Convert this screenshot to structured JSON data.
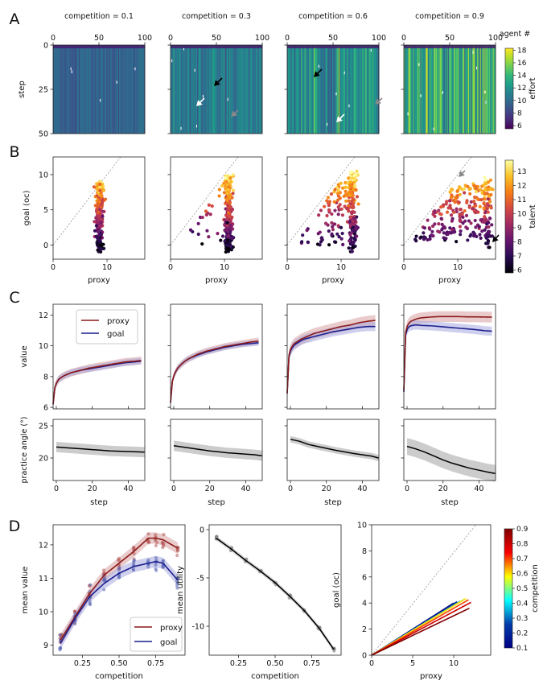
{
  "panel_letters": [
    "A",
    "B",
    "C",
    "D"
  ],
  "colors": {
    "proxy": "#8b1a1a",
    "goal": "#1c1f8e",
    "band_proxy": "#d9a0a0",
    "band_goal": "#a7a9de",
    "angle_line": "#000000",
    "angle_band": "#cccccc",
    "utility": "#000000",
    "diag": "#888888"
  },
  "row_a": {
    "titles": [
      "competition = 0.1",
      "competition = 0.3",
      "competition = 0.6",
      "competition = 0.9"
    ],
    "x_ticks": [
      "0",
      "50",
      "100"
    ],
    "y_ticks": [
      "0",
      "25",
      "50"
    ],
    "ylabel": "step",
    "xlabel_right": "agent #",
    "colorbar_label": "effort",
    "colorbar_ticks": [
      "6",
      "8",
      "10",
      "12",
      "14",
      "16",
      "18"
    ]
  },
  "row_b": {
    "x_ticks": [
      "0",
      "10"
    ],
    "y_ticks": [
      "0",
      "5",
      "10"
    ],
    "xlabel": "proxy",
    "ylabel": "goal (oc)",
    "colorbar_label": "talent",
    "colorbar_ticks": [
      "6",
      "7",
      "8",
      "9",
      "10",
      "11",
      "12",
      "13"
    ]
  },
  "row_c": {
    "value_ticks": [
      "6",
      "8",
      "10",
      "12"
    ],
    "angle_ticks": [
      "20",
      "25"
    ],
    "x_ticks": [
      "0",
      "20",
      "40"
    ],
    "ylabel_value": "value",
    "ylabel_angle": "practice angle (°)",
    "xlabel": "step",
    "legend": [
      "proxy",
      "goal"
    ]
  },
  "row_d": {
    "x_ticks": [
      "0.25",
      "0.50",
      "0.75"
    ],
    "mv_ticks": [
      "9",
      "10",
      "11",
      "12"
    ],
    "mu_ticks": [
      "-10",
      "-5",
      "0"
    ],
    "p3_x_ticks": [
      "0",
      "5",
      "10"
    ],
    "p3_y_ticks": [
      "0",
      "2",
      "4",
      "6",
      "8",
      "10"
    ],
    "xlabel": "competition",
    "ylabel_mean_value": "mean value",
    "ylabel_mean_utility": "mean utility",
    "p3_xlabel": "proxy",
    "p3_ylabel": "goal (oc)",
    "legend": [
      "proxy",
      "goal"
    ],
    "colorbar_label": "competition",
    "colorbar_ticks": [
      "0.1",
      "0.2",
      "0.3",
      "0.4",
      "0.5",
      "0.6",
      "0.7",
      "0.8",
      "0.9"
    ]
  },
  "chart_data": [
    {
      "type": "heatmap",
      "title": "competition = 0.1 / 0.3 / 0.6 / 0.9",
      "xlabel": "agent #",
      "ylabel": "step",
      "xlim": [
        0,
        100
      ],
      "ylim": [
        0,
        50
      ],
      "colorbar": "effort",
      "crange": [
        5.5,
        18.3
      ],
      "mean_effort": [
        9.6,
        10.8,
        11.8,
        13.6
      ]
    },
    {
      "type": "scatter",
      "xlabel": "proxy",
      "ylabel": "goal (oc)",
      "xlim": [
        0,
        17
      ],
      "ylim": [
        -2,
        12.5
      ],
      "clusters": [
        {
          "competition": 0.1,
          "proxy_center": 8.6,
          "goal_range": [
            -1.0,
            9.0
          ],
          "offdiag_pct": 0
        },
        {
          "competition": 0.3,
          "proxy_center": 10.8,
          "goal_range": [
            -1.0,
            10.0
          ],
          "offdiag_pct": 12
        },
        {
          "competition": 0.6,
          "proxy_center": 12.2,
          "goal_range": [
            -1.0,
            10.5
          ],
          "offdiag_pct": 45
        },
        {
          "competition": 0.9,
          "proxy_center": 15.5,
          "goal_range": [
            -0.5,
            9.8
          ],
          "offdiag_pct": 75
        }
      ]
    },
    {
      "type": "line",
      "xlabel": "step",
      "ylabel": "value",
      "x": [
        0,
        1,
        2,
        3,
        4,
        6,
        8,
        10,
        15,
        20,
        25,
        30,
        35,
        40,
        45,
        49
      ],
      "ylim": [
        5.9,
        12.7
      ],
      "series": [
        {
          "name": "proxy",
          "panels": [
            [
              6.2,
              7.3,
              7.6,
              7.8,
              7.9,
              8.05,
              8.15,
              8.25,
              8.4,
              8.55,
              8.65,
              8.75,
              8.85,
              8.95,
              9.0,
              9.05
            ],
            [
              6.3,
              7.7,
              8.1,
              8.35,
              8.55,
              8.8,
              9.0,
              9.15,
              9.45,
              9.65,
              9.8,
              9.95,
              10.05,
              10.15,
              10.25,
              10.3
            ],
            [
              6.9,
              9.4,
              9.8,
              10.0,
              10.15,
              10.3,
              10.45,
              10.55,
              10.8,
              10.95,
              11.1,
              11.25,
              11.35,
              11.5,
              11.6,
              11.65
            ],
            [
              7.1,
              10.9,
              11.3,
              11.5,
              11.6,
              11.7,
              11.78,
              11.82,
              11.87,
              11.9,
              11.9,
              11.9,
              11.88,
              11.88,
              11.87,
              11.86
            ]
          ]
        },
        {
          "name": "goal",
          "panels": [
            [
              6.2,
              7.3,
              7.6,
              7.8,
              7.9,
              8.05,
              8.15,
              8.25,
              8.4,
              8.5,
              8.6,
              8.7,
              8.8,
              8.9,
              8.95,
              9.0
            ],
            [
              6.3,
              7.7,
              8.1,
              8.35,
              8.55,
              8.8,
              9.0,
              9.15,
              9.4,
              9.6,
              9.75,
              9.9,
              10.0,
              10.1,
              10.15,
              10.2
            ],
            [
              6.9,
              9.3,
              9.7,
              9.9,
              10.05,
              10.2,
              10.35,
              10.45,
              10.6,
              10.75,
              10.9,
              11.0,
              11.1,
              11.2,
              11.25,
              11.25
            ],
            [
              7.0,
              10.7,
              11.1,
              11.25,
              11.3,
              11.35,
              11.35,
              11.32,
              11.3,
              11.25,
              11.2,
              11.15,
              11.1,
              11.05,
              10.98,
              10.95
            ]
          ]
        }
      ]
    },
    {
      "type": "line",
      "xlabel": "step",
      "ylabel": "practice angle (°)",
      "x": [
        0,
        5,
        10,
        15,
        20,
        25,
        30,
        35,
        40,
        45,
        49
      ],
      "ylim": [
        16.5,
        26
      ],
      "series": [
        {
          "name": "angle",
          "panels": [
            [
              21.7,
              21.6,
              21.5,
              21.4,
              21.3,
              21.2,
              21.1,
              21.05,
              21.0,
              20.95,
              20.9
            ],
            [
              21.9,
              21.7,
              21.5,
              21.3,
              21.1,
              20.95,
              20.8,
              20.7,
              20.6,
              20.5,
              20.35
            ],
            [
              22.9,
              22.6,
              22.1,
              21.8,
              21.5,
              21.2,
              20.95,
              20.7,
              20.5,
              20.3,
              20.0
            ],
            [
              21.8,
              21.4,
              20.9,
              20.3,
              19.7,
              19.2,
              18.8,
              18.4,
              18.1,
              17.8,
              17.6
            ]
          ]
        }
      ],
      "band_halfwidth": [
        0.8,
        0.8,
        0.5,
        1.3
      ]
    },
    {
      "type": "line",
      "xlabel": "competition",
      "ylabel": "mean value",
      "x": [
        0.1,
        0.2,
        0.3,
        0.4,
        0.5,
        0.6,
        0.7,
        0.75,
        0.8,
        0.9
      ],
      "xlim": [
        0.05,
        0.95
      ],
      "ylim": [
        8.7,
        12.6
      ],
      "series": [
        {
          "name": "proxy",
          "values": [
            9.15,
            9.85,
            10.55,
            11.1,
            11.45,
            11.8,
            12.2,
            12.2,
            12.15,
            11.9
          ]
        },
        {
          "name": "goal",
          "values": [
            9.05,
            9.8,
            10.45,
            10.85,
            11.15,
            11.35,
            11.45,
            11.5,
            11.45,
            10.95
          ]
        }
      ]
    },
    {
      "type": "line",
      "xlabel": "competition",
      "ylabel": "mean utility",
      "x": [
        0.1,
        0.2,
        0.3,
        0.4,
        0.5,
        0.6,
        0.7,
        0.8,
        0.9
      ],
      "xlim": [
        0.05,
        0.95
      ],
      "ylim": [
        -13,
        0.5
      ],
      "series": [
        {
          "name": "utility",
          "values": [
            -0.9,
            -2.0,
            -3.2,
            -4.3,
            -5.5,
            -6.9,
            -8.4,
            -10.2,
            -12.4
          ]
        }
      ]
    },
    {
      "type": "line",
      "xlabel": "proxy",
      "ylabel": "goal (oc)",
      "xlim": [
        0,
        14.5
      ],
      "ylim": [
        0,
        10
      ],
      "colorbar": "competition",
      "series": [
        {
          "competition": 0.1,
          "end": [
            10.0,
            4.0
          ]
        },
        {
          "competition": 0.2,
          "end": [
            10.4,
            4.1
          ]
        },
        {
          "competition": 0.3,
          "end": [
            10.8,
            4.15
          ]
        },
        {
          "competition": 0.4,
          "end": [
            11.1,
            4.2
          ]
        },
        {
          "competition": 0.5,
          "end": [
            11.3,
            4.3
          ]
        },
        {
          "competition": 0.6,
          "end": [
            11.5,
            4.35
          ]
        },
        {
          "competition": 0.7,
          "end": [
            11.8,
            4.25
          ]
        },
        {
          "competition": 0.8,
          "end": [
            12.1,
            4.05
          ]
        },
        {
          "competition": 0.9,
          "end": [
            11.9,
            3.6
          ]
        }
      ]
    }
  ]
}
